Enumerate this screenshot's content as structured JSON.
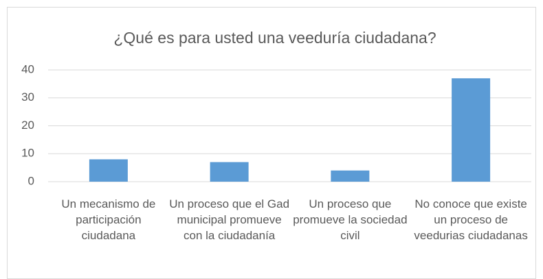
{
  "chart_data": {
    "type": "bar",
    "title": "¿Qué es para usted una veeduría ciudadana?",
    "categories": [
      "Un mecanismo de participación ciudadana",
      "Un proceso que el Gad municipal promueve con la ciudadanía",
      "Un proceso que promueve la sociedad civil",
      "No conoce que existe un proceso de veedurias ciudadanas"
    ],
    "values": [
      8,
      7,
      4,
      37
    ],
    "color": "#5b9bd5",
    "ylim": [
      0,
      40
    ],
    "yticks": [
      0,
      10,
      20,
      30,
      40
    ],
    "grid": true
  }
}
